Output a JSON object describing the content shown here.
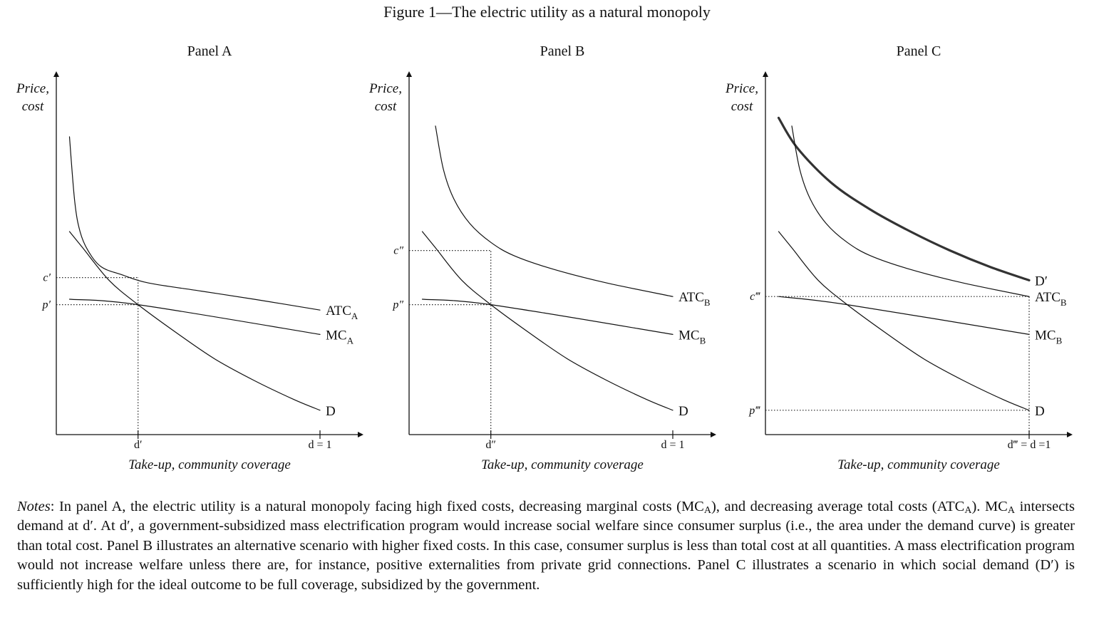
{
  "figure_title": "Figure 1—The electric utility as a natural monopoly",
  "notes": {
    "label": "Notes",
    "segments": [
      {
        "t": ": In panel A, the electric utility is a natural monopoly facing high fixed costs, decreasing marginal costs (MC"
      },
      {
        "sub": "A"
      },
      {
        "t": "), and decreasing average total costs (ATC"
      },
      {
        "sub": "A"
      },
      {
        "t": "). MC"
      },
      {
        "sub": "A"
      },
      {
        "t": " intersects demand at d′. At d′, a government-subsidized mass electrification program would increase social welfare since consumer surplus (i.e., the area under the demand curve) is greater than total cost. Panel B illustrates an alternative scenario with higher fixed costs. In this case, consumer surplus is less than total cost at all quantities. A mass electrification program would not increase welfare unless there are, for instance, positive externalities from private grid connections. Panel C illustrates a scenario in which social demand (D′) is sufficiently high for the ideal outcome to be full coverage, subsidized by the government."
      }
    ]
  },
  "chart_data": [
    {
      "type": "line",
      "title": "Panel A",
      "ylabel_lines": [
        "Price,",
        "cost"
      ],
      "xlabel": "Take-up, community coverage",
      "x_ticks": [
        {
          "x": 0.31,
          "label": "d′",
          "style": "plain"
        },
        {
          "x": 1.0,
          "label": "d = 1",
          "style": "plain"
        }
      ],
      "y_ticks": [
        {
          "y": 0.58,
          "label": "c′"
        },
        {
          "y": 0.48,
          "label": "p′"
        }
      ],
      "xlim": [
        0,
        1.16
      ],
      "ylim": [
        0,
        1.2
      ],
      "series": [
        {
          "name": "ATC",
          "sub": "A",
          "width": 1.2,
          "points": [
            [
              0.05,
              1.1
            ],
            [
              0.07,
              0.86
            ],
            [
              0.09,
              0.75
            ],
            [
              0.12,
              0.68
            ],
            [
              0.17,
              0.62
            ],
            [
              0.25,
              0.59
            ],
            [
              0.35,
              0.56
            ],
            [
              0.55,
              0.53
            ],
            [
              0.75,
              0.5
            ],
            [
              1.0,
              0.46
            ]
          ]
        },
        {
          "name": "MC",
          "sub": "A",
          "width": 1.2,
          "points": [
            [
              0.05,
              0.5
            ],
            [
              0.31,
              0.48
            ],
            [
              1.0,
              0.37
            ]
          ]
        },
        {
          "name": "D",
          "sub": "",
          "width": 1.2,
          "points": [
            [
              0.05,
              0.75
            ],
            [
              0.1,
              0.69
            ],
            [
              0.2,
              0.57
            ],
            [
              0.31,
              0.48
            ],
            [
              0.45,
              0.38
            ],
            [
              0.6,
              0.28
            ],
            [
              0.75,
              0.2
            ],
            [
              0.9,
              0.13
            ],
            [
              1.0,
              0.09
            ]
          ]
        }
      ],
      "guides": [
        {
          "from": [
            0,
            0.58
          ],
          "to": [
            0.31,
            0.58
          ]
        },
        {
          "from": [
            0,
            0.48
          ],
          "to": [
            0.31,
            0.48
          ]
        },
        {
          "from": [
            0.31,
            0
          ],
          "to": [
            0.31,
            0.58
          ]
        }
      ]
    },
    {
      "type": "line",
      "title": "Panel B",
      "ylabel_lines": [
        "Price,",
        "cost"
      ],
      "xlabel": "Take-up, community coverage",
      "x_ticks": [
        {
          "x": 0.31,
          "label": "d″",
          "style": "plain"
        },
        {
          "x": 1.0,
          "label": "d = 1",
          "style": "plain"
        }
      ],
      "y_ticks": [
        {
          "y": 0.68,
          "label": "c″"
        },
        {
          "y": 0.48,
          "label": "p″"
        }
      ],
      "xlim": [
        0,
        1.16
      ],
      "ylim": [
        0,
        1.2
      ],
      "series": [
        {
          "name": "ATC",
          "sub": "B",
          "width": 1.2,
          "points": [
            [
              0.1,
              1.14
            ],
            [
              0.13,
              0.98
            ],
            [
              0.17,
              0.87
            ],
            [
              0.23,
              0.78
            ],
            [
              0.31,
              0.71
            ],
            [
              0.4,
              0.66
            ],
            [
              0.55,
              0.61
            ],
            [
              0.75,
              0.56
            ],
            [
              1.0,
              0.51
            ]
          ]
        },
        {
          "name": "MC",
          "sub": "B",
          "width": 1.2,
          "points": [
            [
              0.05,
              0.5
            ],
            [
              0.31,
              0.48
            ],
            [
              1.0,
              0.37
            ]
          ]
        },
        {
          "name": "D",
          "sub": "",
          "width": 1.2,
          "points": [
            [
              0.05,
              0.75
            ],
            [
              0.1,
              0.69
            ],
            [
              0.2,
              0.57
            ],
            [
              0.31,
              0.48
            ],
            [
              0.45,
              0.38
            ],
            [
              0.6,
              0.28
            ],
            [
              0.75,
              0.2
            ],
            [
              0.9,
              0.13
            ],
            [
              1.0,
              0.09
            ]
          ]
        }
      ],
      "guides": [
        {
          "from": [
            0,
            0.68
          ],
          "to": [
            0.31,
            0.68
          ]
        },
        {
          "from": [
            0,
            0.48
          ],
          "to": [
            0.31,
            0.48
          ]
        },
        {
          "from": [
            0.31,
            0
          ],
          "to": [
            0.31,
            0.68
          ]
        }
      ]
    },
    {
      "type": "line",
      "title": "Panel C",
      "ylabel_lines": [
        "Price,",
        "cost"
      ],
      "xlabel": "Take-up, community coverage",
      "x_ticks": [
        {
          "x": 1.0,
          "label": "d‴ = d =1",
          "style": "plain"
        }
      ],
      "y_ticks": [
        {
          "y": 0.51,
          "label": "c‴"
        },
        {
          "y": 0.09,
          "label": "p‴"
        }
      ],
      "xlim": [
        0,
        1.16
      ],
      "ylim": [
        0,
        1.2
      ],
      "series": [
        {
          "name": "D′",
          "sub": "",
          "width": 3.2,
          "points": [
            [
              0.05,
              1.17
            ],
            [
              0.12,
              1.06
            ],
            [
              0.25,
              0.93
            ],
            [
              0.4,
              0.83
            ],
            [
              0.55,
              0.75
            ],
            [
              0.7,
              0.68
            ],
            [
              0.85,
              0.62
            ],
            [
              1.0,
              0.57
            ]
          ]
        },
        {
          "name": "ATC",
          "sub": "B",
          "width": 1.2,
          "points": [
            [
              0.1,
              1.14
            ],
            [
              0.13,
              0.98
            ],
            [
              0.17,
              0.87
            ],
            [
              0.23,
              0.78
            ],
            [
              0.31,
              0.71
            ],
            [
              0.4,
              0.66
            ],
            [
              0.55,
              0.61
            ],
            [
              0.75,
              0.56
            ],
            [
              1.0,
              0.51
            ]
          ]
        },
        {
          "name": "MC",
          "sub": "B",
          "width": 1.2,
          "points": [
            [
              0.05,
              0.51
            ],
            [
              0.31,
              0.48
            ],
            [
              1.0,
              0.37
            ]
          ]
        },
        {
          "name": "D",
          "sub": "",
          "width": 1.2,
          "points": [
            [
              0.05,
              0.75
            ],
            [
              0.1,
              0.69
            ],
            [
              0.2,
              0.57
            ],
            [
              0.31,
              0.48
            ],
            [
              0.45,
              0.38
            ],
            [
              0.6,
              0.28
            ],
            [
              0.75,
              0.2
            ],
            [
              0.9,
              0.13
            ],
            [
              1.0,
              0.09
            ]
          ]
        }
      ],
      "guides": [
        {
          "from": [
            0,
            0.51
          ],
          "to": [
            1.0,
            0.51
          ]
        },
        {
          "from": [
            0,
            0.09
          ],
          "to": [
            1.0,
            0.09
          ]
        },
        {
          "from": [
            1.0,
            0
          ],
          "to": [
            1.0,
            0.51
          ]
        }
      ]
    }
  ]
}
